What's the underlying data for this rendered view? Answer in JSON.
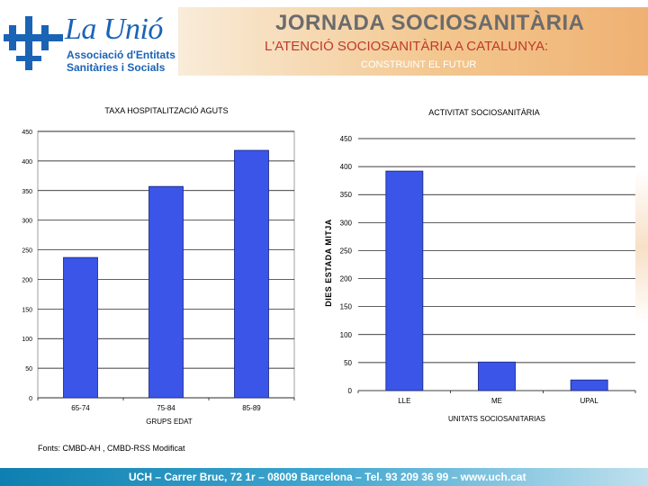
{
  "header": {
    "title": "JORNADA SOCIOSANITÀRIA",
    "subtitle": "L'ATENCIÓ SOCIOSANITÀRIA A CATALUNYA:",
    "tagline": "CONSTRUINT EL FUTUR",
    "logo": {
      "name": "La Unió",
      "line1": "Associació d'Entitats",
      "line2": "Sanitàries i Socials"
    }
  },
  "source_note": "Fonts: CMBD-AH , CMBD-RSS Modificat",
  "footer": {
    "text": "UCH – Carrer Bruc, 72 1r – 08009 Barcelona – Tel. 93 209 36 99 – www.uch.cat"
  },
  "colors": {
    "bar": "#3a55e8",
    "accent": "#1a63b5",
    "footer": "#0e7fb0"
  },
  "chart_data": [
    {
      "type": "bar",
      "title": "TAXA HOSPITALITZACIÓ AGUTS",
      "xlabel": "GRUPS EDAT",
      "ylabel": "",
      "categories": [
        "65-74",
        "75-84",
        "85-89"
      ],
      "values": [
        237,
        357,
        418
      ],
      "ylim": [
        0,
        450
      ],
      "yticks": [
        0,
        50,
        100,
        150,
        200,
        250,
        300,
        350,
        400,
        450
      ],
      "grid": true
    },
    {
      "type": "bar",
      "title": "ACTIVITAT SOCIOSANITÀRIA",
      "xlabel": "UNITATS SOCIOSANITARIAS",
      "ylabel": "DIES ESTADA MITJA",
      "categories": [
        "LLE",
        "ME",
        "UPAL"
      ],
      "values": [
        392,
        51,
        19
      ],
      "ylim": [
        0,
        450
      ],
      "yticks": [
        0,
        50,
        100,
        150,
        200,
        250,
        300,
        350,
        400,
        450
      ],
      "grid": true
    }
  ]
}
